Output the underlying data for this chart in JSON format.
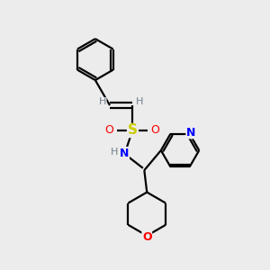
{
  "background_color": "#ececec",
  "bond_color": "#000000",
  "atom_colors": {
    "N": "#0000ff",
    "O": "#ff0000",
    "S": "#cccc00",
    "C": "#000000",
    "H": "#708090"
  },
  "figsize": [
    3.0,
    3.0
  ],
  "dpi": 100,
  "xlim": [
    0,
    10
  ],
  "ylim": [
    0,
    10
  ]
}
